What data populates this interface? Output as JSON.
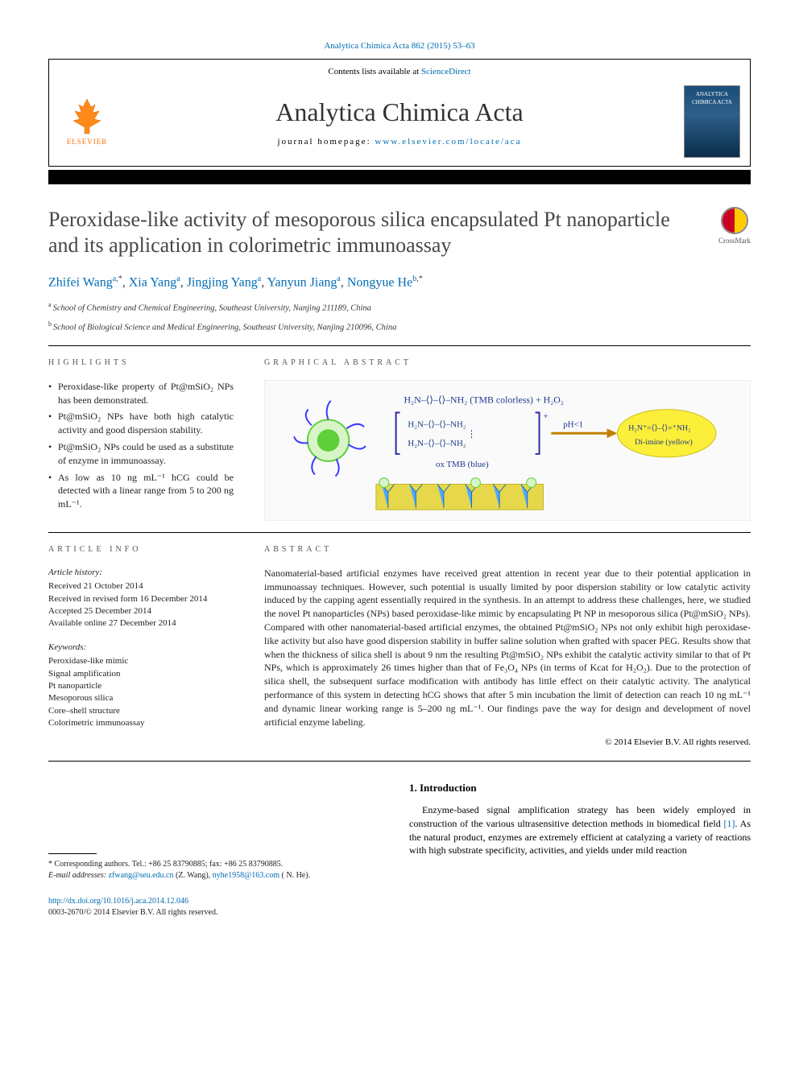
{
  "journal_ref": "Analytica Chimica Acta 862 (2015) 53–63",
  "header": {
    "contents_prefix": "Contents lists available at ",
    "contents_link": "ScienceDirect",
    "journal_title": "Analytica Chimica Acta",
    "homepage_prefix": "journal homepage: ",
    "homepage_link": "www.elsevier.com/locate/aca",
    "publisher": "ELSEVIER",
    "cover_title": "ANALYTICA CHIMICA ACTA"
  },
  "crossmark_label": "CrossMark",
  "article_title": "Peroxidase-like activity of mesoporous silica encapsulated Pt nanoparticle and its application in colorimetric immunoassay",
  "authors": [
    {
      "name": "Zhifei Wang",
      "aff": "a",
      "corr": true
    },
    {
      "name": "Xia Yang",
      "aff": "a",
      "corr": false
    },
    {
      "name": "Jingjing Yang",
      "aff": "a",
      "corr": false
    },
    {
      "name": "Yanyun Jiang",
      "aff": "a",
      "corr": false
    },
    {
      "name": "Nongyue He",
      "aff": "b",
      "corr": true
    }
  ],
  "affiliations": {
    "a": "School of Chemistry and Chemical Engineering, Southeast University, Nanjing 211189, China",
    "b": "School of Biological Science and Medical Engineering, Southeast University, Nanjing 210096, China"
  },
  "section_heads": {
    "highlights": "HIGHLIGHTS",
    "graphical": "GRAPHICAL ABSTRACT",
    "article_info": "ARTICLE INFO",
    "abstract": "ABSTRACT"
  },
  "highlights": [
    "Peroxidase-like property of Pt@mSiO₂ NPs has been demonstrated.",
    "Pt@mSiO₂ NPs have both high catalytic activity and good dispersion stability.",
    "Pt@mSiO₂ NPs could be used as a substitute of enzyme in immunoassay.",
    "As low as 10 ng mL⁻¹ hCG could be detected with a linear range from 5 to 200 ng mL⁻¹."
  ],
  "graphical_abstract": {
    "formula_top": "H₂N–⟨⟩–⟨⟩–NH₂ (TMB colorless) + H₂O₂",
    "ox_label": "ox TMB (blue)",
    "left_block_1": "H₂N–⟨⟩–⟨⟩–NH₂",
    "left_block_2": "H₂N–⟨⟩–⟨⟩–NH₂",
    "ph_label": "pH<1",
    "diimine_1": "H₂N⁺=⟨⟩–⟨⟩=⁺NH₂",
    "diimine_2": "Di-imine (yellow)",
    "colors": {
      "particle_core": "#5fcf3a",
      "particle_arms": "#3b3bff",
      "arrow": "#c08000",
      "bracket": "#2b2ba6",
      "yellow_box": "#fcef3a",
      "surface": "#e6d84a",
      "y_shapes": "#4fa8ff",
      "text": "#1b3a8a"
    }
  },
  "article_info": {
    "history_head": "Article history:",
    "received": "Received 21 October 2014",
    "revised": "Received in revised form 16 December 2014",
    "accepted": "Accepted 25 December 2014",
    "online": "Available online 27 December 2014"
  },
  "keywords_head": "Keywords:",
  "keywords": [
    "Peroxidase-like mimic",
    "Signal amplification",
    "Pt nanoparticle",
    "Mesoporous silica",
    "Core–shell structure",
    "Colorimetric immunoassay"
  ],
  "abstract": "Nanomaterial-based artificial enzymes have received great attention in recent year due to their potential application in immunoassay techniques. However, such potential is usually limited by poor dispersion stability or low catalytic activity induced by the capping agent essentially required in the synthesis. In an attempt to address these challenges, here, we studied the novel Pt nanoparticles (NPs) based peroxidase-like mimic by encapsulating Pt NP in mesoporous silica (Pt@mSiO₂ NPs). Compared with other nanomaterial-based artificial enzymes, the obtained Pt@mSiO₂ NPs not only exhibit high peroxidase-like activity but also have good dispersion stability in buffer saline solution when grafted with spacer PEG. Results show that when the thickness of silica shell is about 9 nm the resulting Pt@mSiO₂ NPs exhibit the catalytic activity similar to that of Pt NPs, which is approximately 26 times higher than that of Fe₃O₄ NPs (in terms of Kcat for H₂O₂). Due to the protection of silica shell, the subsequent surface modification with antibody has little effect on their catalytic activity. The analytical performance of this system in detecting hCG shows that after 5 min incubation the limit of detection can reach 10 ng mL⁻¹ and dynamic linear working range is 5–200 ng mL⁻¹. Our findings pave the way for design and development of novel artificial enzyme labeling.",
  "copyright": "© 2014 Elsevier B.V. All rights reserved.",
  "intro": {
    "head": "1. Introduction",
    "para": "Enzyme-based signal amplification strategy has been widely employed in construction of the various ultrasensitive detection methods in biomedical field [1]. As the natural product, enzymes are extremely efficient at catalyzing a variety of reactions with high substrate specificity, activities, and yields under mild reaction",
    "ref_link": "[1]"
  },
  "footnotes": {
    "corr": "* Corresponding authors. Tel.: +86 25 83790885; fax: +86 25 83790885.",
    "email_label": "E-mail addresses:",
    "email1": "zfwang@seu.edu.cn",
    "email1_name": " (Z. Wang), ",
    "email2": "nyhe1958@163.com",
    "email2_name": " ( N. He)."
  },
  "footer": {
    "doi": "http://dx.doi.org/10.1016/j.aca.2014.12.046",
    "copyright": "0003-2670/© 2014 Elsevier B.V. All rights reserved."
  }
}
